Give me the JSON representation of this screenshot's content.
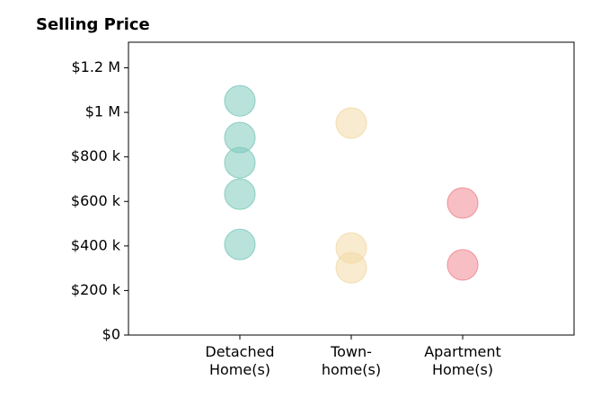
{
  "chart_data": {
    "type": "scatter",
    "title": "Selling Price",
    "categories": [
      "Detached\nHome(s)",
      "Town-\nhome(s)",
      "Apartment\nHome(s)"
    ],
    "colors": [
      "#7fcabd",
      "#f3dba8",
      "#f08a92"
    ],
    "values": [
      [
        1052000,
        887000,
        774000,
        633000,
        407000
      ],
      [
        952000,
        391000,
        302000
      ],
      [
        593000,
        315000
      ]
    ],
    "xlim": [
      0,
      4
    ],
    "ylim": [
      0,
      1315000
    ],
    "yticks": [
      {
        "value": 0,
        "label": "$0"
      },
      {
        "value": 200000,
        "label": "$200 k"
      },
      {
        "value": 400000,
        "label": "$400 k"
      },
      {
        "value": 600000,
        "label": "$600 k"
      },
      {
        "value": 800000,
        "label": "$800 k"
      },
      {
        "value": 1000000,
        "label": "$1 M"
      },
      {
        "value": 1200000,
        "label": "$1.2 M"
      }
    ]
  }
}
